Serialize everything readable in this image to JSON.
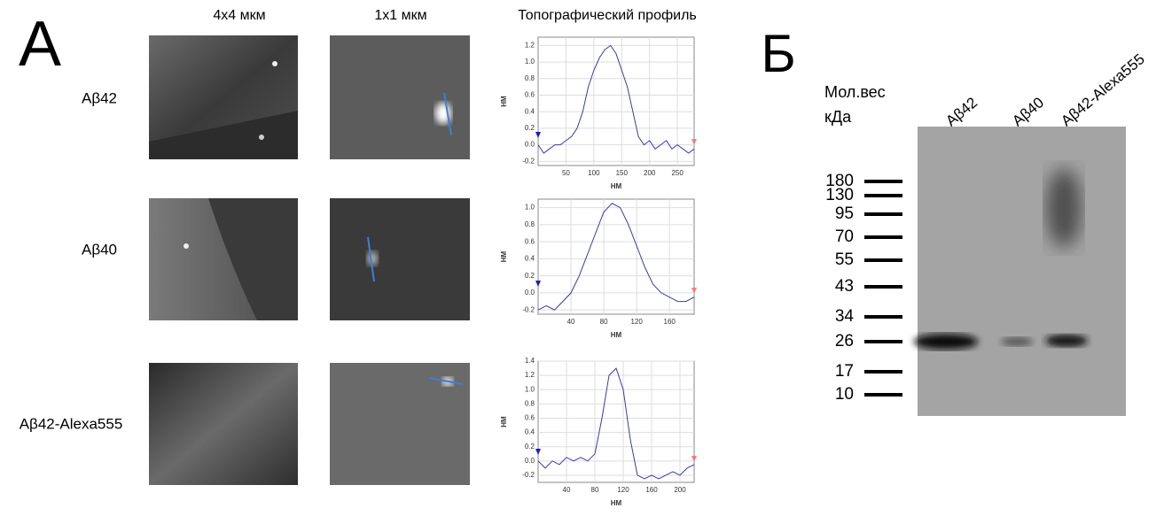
{
  "panel_a": {
    "label": "А",
    "column_headers": [
      "4x4 мкм",
      "1x1 мкм",
      "Топографический профиль"
    ],
    "row_labels": [
      "Aβ42",
      "Aβ40",
      "Aβ42-Alexa555"
    ]
  },
  "panel_b": {
    "label": "Б",
    "mw_title": "Мол.вес",
    "mw_unit": "кДа",
    "lanes": [
      "Aβ42",
      "Aβ40",
      "Aβ42-Alexa555"
    ],
    "markers": [
      180,
      130,
      95,
      70,
      55,
      43,
      34,
      26,
      17,
      10
    ]
  },
  "chart_data": [
    {
      "type": "line",
      "xlabel": "НМ",
      "ylabel": "НМ",
      "color": "#3a3aa8",
      "grid": true,
      "x": [
        0,
        10,
        20,
        30,
        40,
        50,
        60,
        70,
        80,
        90,
        100,
        110,
        120,
        130,
        140,
        150,
        160,
        170,
        180,
        190,
        200,
        210,
        220,
        230,
        240,
        250,
        260,
        270,
        280
      ],
      "values": [
        0.0,
        -0.1,
        -0.05,
        0.0,
        0.0,
        0.05,
        0.1,
        0.2,
        0.4,
        0.7,
        0.9,
        1.05,
        1.15,
        1.2,
        1.1,
        0.9,
        0.7,
        0.4,
        0.1,
        0.0,
        0.05,
        -0.05,
        0.0,
        0.05,
        -0.05,
        0.0,
        -0.05,
        -0.1,
        -0.05
      ],
      "xlim": [
        0,
        280
      ],
      "xticks": [
        50,
        100,
        150,
        200,
        250
      ],
      "ylim": [
        -0.25,
        1.3
      ],
      "yticks": [
        -0.2,
        {
          "value": 0,
          "label": "0.0"
        },
        0.2,
        0.4,
        0.6,
        0.8,
        {
          "value": 1,
          "label": "1.0"
        },
        1.2
      ]
    },
    {
      "type": "line",
      "xlabel": "НМ",
      "ylabel": "НМ",
      "color": "#3a3aa8",
      "grid": true,
      "x": [
        0,
        10,
        20,
        30,
        40,
        50,
        60,
        70,
        80,
        90,
        100,
        110,
        120,
        130,
        140,
        150,
        160,
        170,
        180,
        190
      ],
      "values": [
        -0.2,
        -0.15,
        -0.2,
        -0.1,
        0.0,
        0.2,
        0.45,
        0.7,
        0.95,
        1.05,
        1.0,
        0.8,
        0.55,
        0.3,
        0.1,
        0.0,
        -0.05,
        -0.1,
        -0.1,
        -0.05
      ],
      "xlim": [
        0,
        190
      ],
      "xticks": [
        40,
        80,
        120,
        160
      ],
      "ylim": [
        -0.25,
        1.1
      ],
      "yticks": [
        -0.2,
        {
          "value": 0,
          "label": "0.0"
        },
        0.2,
        0.4,
        0.6,
        0.8,
        {
          "value": 1,
          "label": "1.0"
        }
      ]
    },
    {
      "type": "line",
      "xlabel": "НМ",
      "ylabel": "НМ",
      "color": "#3a3aa8",
      "grid": true,
      "x": [
        0,
        10,
        20,
        30,
        40,
        50,
        60,
        70,
        80,
        90,
        100,
        110,
        120,
        130,
        140,
        150,
        160,
        170,
        180,
        190,
        200,
        210,
        220
      ],
      "values": [
        0.0,
        -0.1,
        0.0,
        -0.05,
        0.05,
        0.0,
        0.05,
        0.0,
        0.1,
        0.6,
        1.2,
        1.3,
        1.0,
        0.3,
        -0.2,
        -0.25,
        -0.2,
        -0.25,
        -0.2,
        -0.15,
        -0.2,
        -0.1,
        -0.05
      ],
      "xlim": [
        0,
        220
      ],
      "xticks": [
        40,
        80,
        120,
        160,
        200
      ],
      "ylim": [
        -0.3,
        1.4
      ],
      "yticks": [
        -0.2,
        {
          "value": 0,
          "label": "0.0"
        },
        0.2,
        0.4,
        0.6,
        0.8,
        {
          "value": 1,
          "label": "1.0"
        },
        1.2,
        1.4
      ]
    }
  ]
}
